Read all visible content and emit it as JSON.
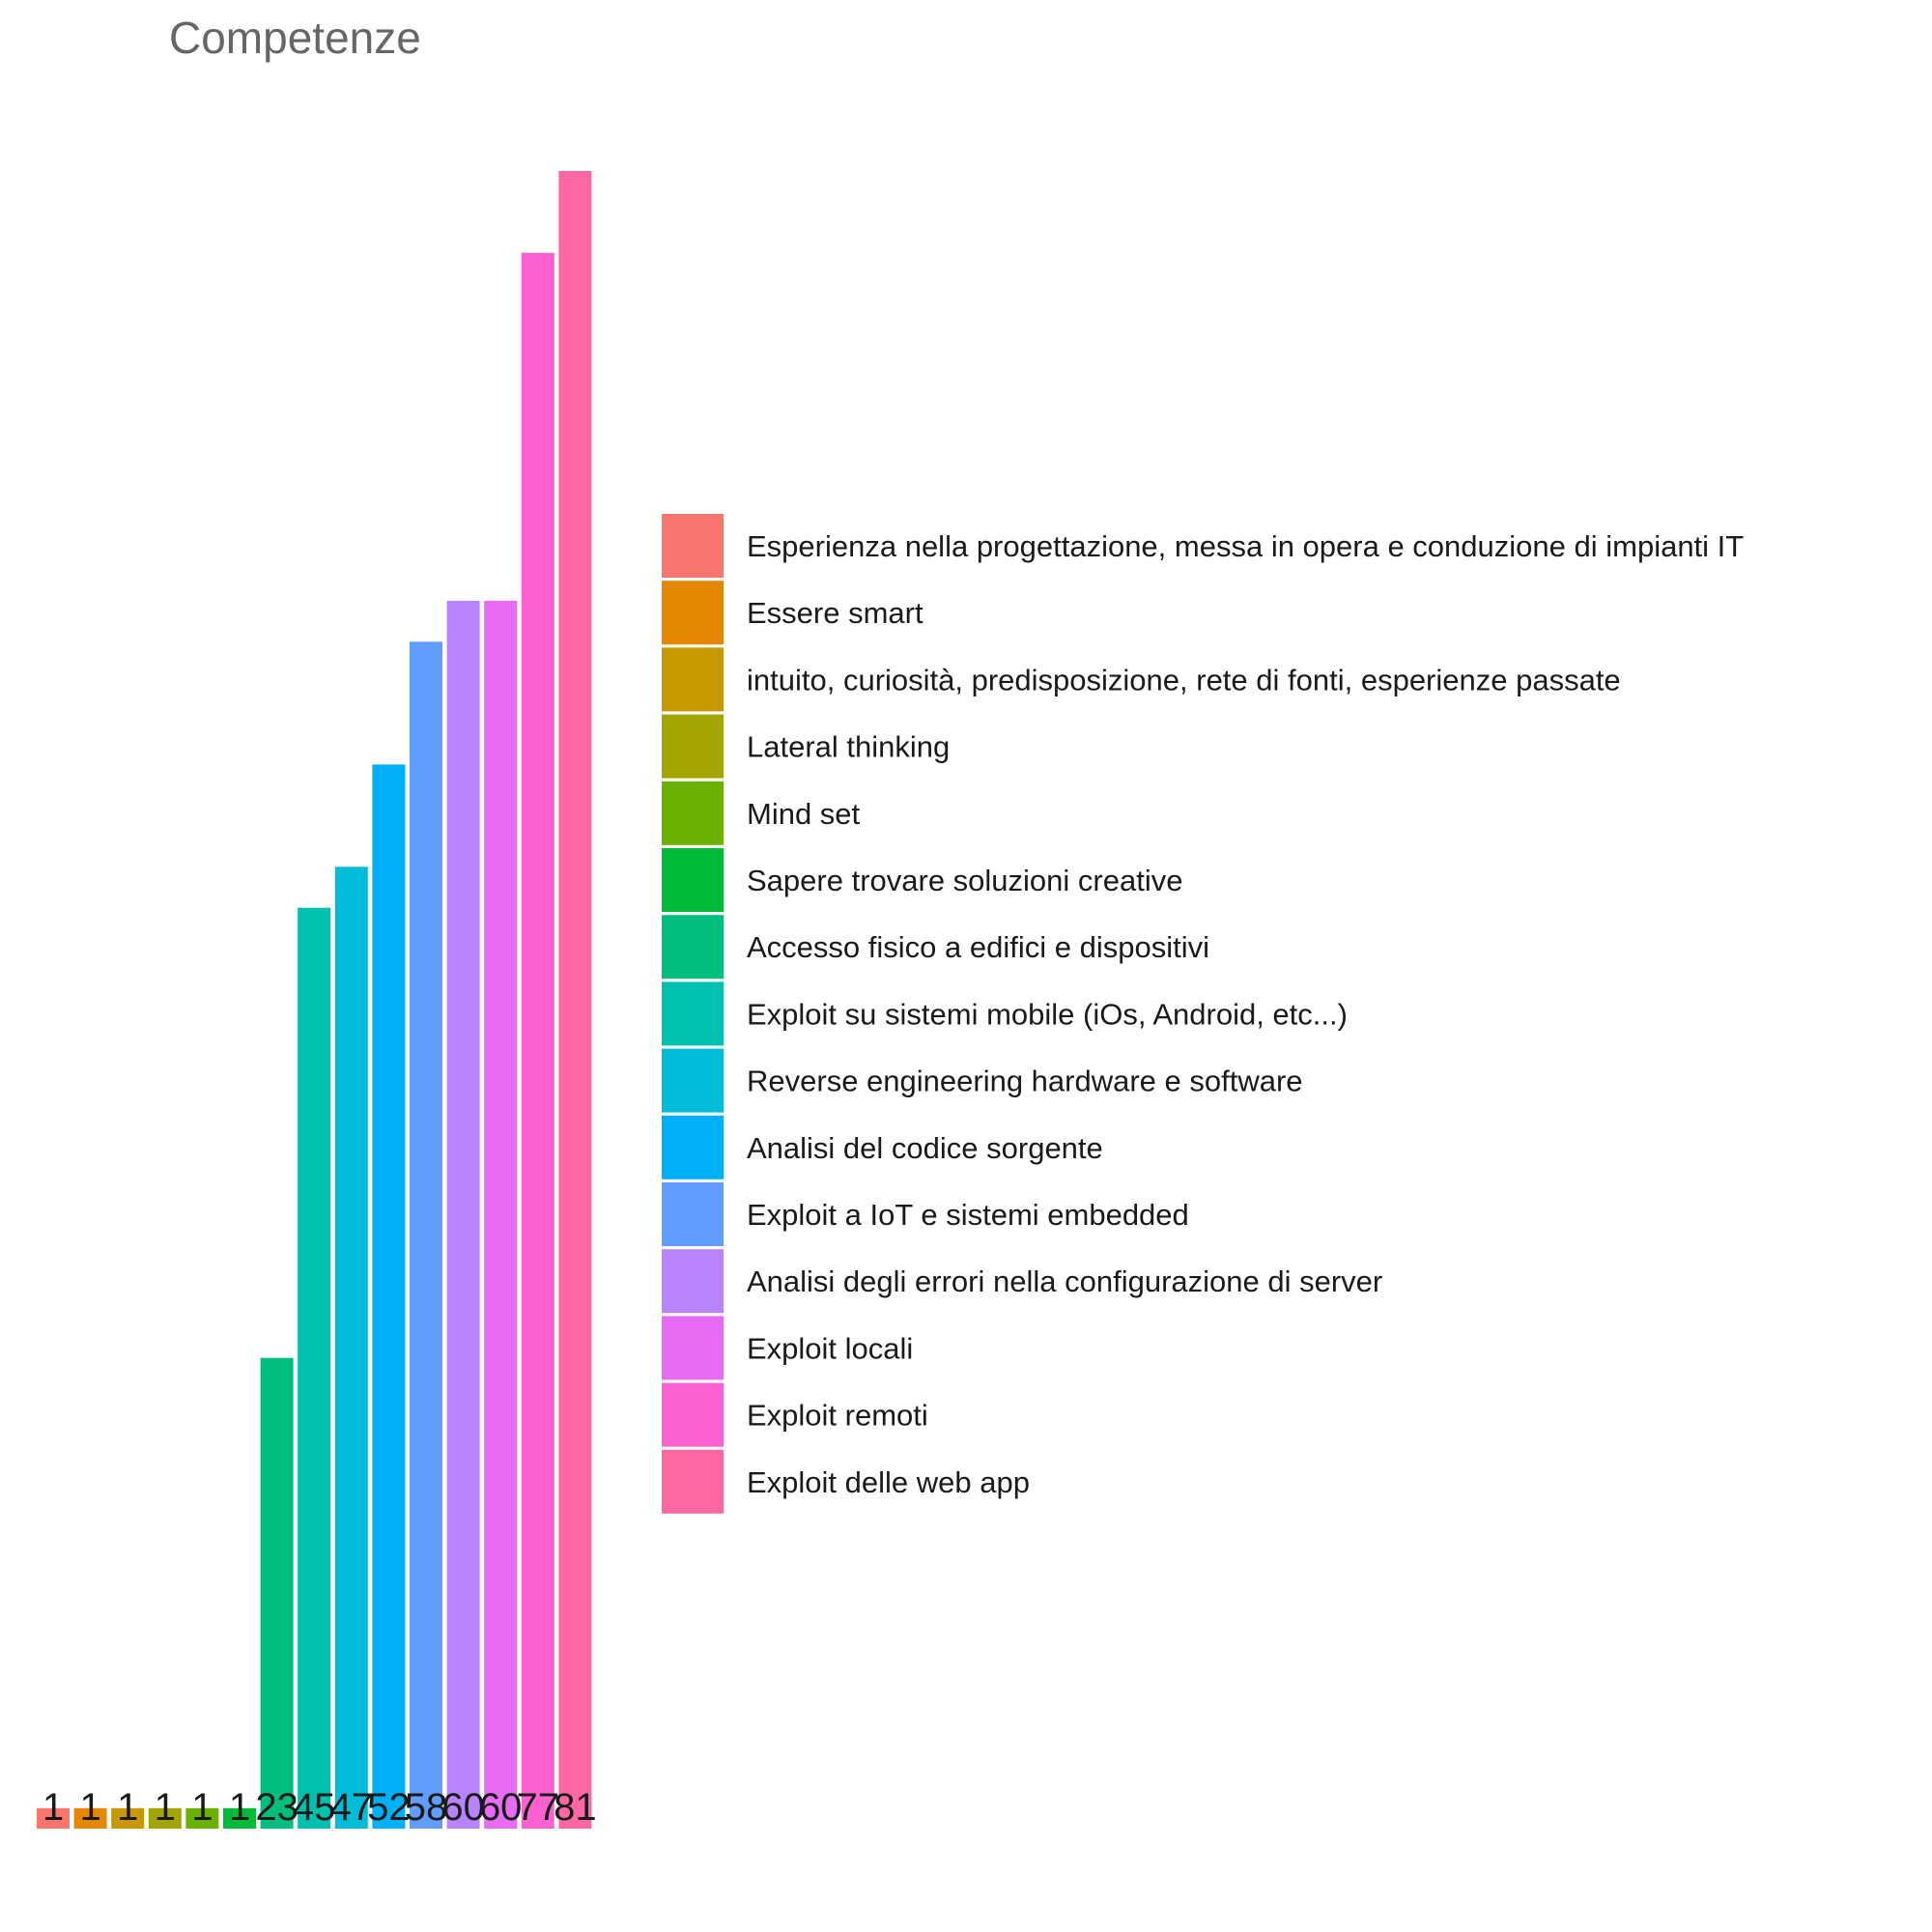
{
  "chart_data": {
    "type": "bar",
    "title": "Competenze",
    "xlabel": "",
    "ylabel": "",
    "ylim": [
      0,
      81
    ],
    "grid": false,
    "legend_position": "right",
    "categories": [
      "Esperienza nella progettazione, messa in opera e conduzione di impianti IT",
      "Essere smart",
      "intuito, curiosità, predisposizione, rete di fonti, esperienze passate",
      "Lateral thinking",
      "Mind set",
      "Sapere trovare soluzioni creative",
      "Accesso fisico a edifici e dispositivi",
      "Exploit su sistemi mobile (iOs, Android, etc...)",
      "Reverse engineering hardware e software",
      "Analisi del codice sorgente",
      "Exploit a IoT e sistemi embedded",
      "Analisi degli errori nella configurazione di server",
      "Exploit locali",
      "Exploit remoti",
      "Exploit delle web app"
    ],
    "values": [
      1,
      1,
      1,
      1,
      1,
      1,
      23,
      45,
      47,
      52,
      58,
      60,
      60,
      77,
      81
    ],
    "data_labels": [
      "1",
      "1",
      "1",
      "1",
      "1",
      "1",
      "23",
      "45",
      "47",
      "52",
      "58",
      "60",
      "60",
      "77",
      "81"
    ],
    "colors": [
      "#F8766D",
      "#E58700",
      "#C99800",
      "#A3A500",
      "#6BB100",
      "#00BA38",
      "#00BF7D",
      "#00C0AF",
      "#00BCD8",
      "#00B0F6",
      "#619CFF",
      "#B983FF",
      "#E76BF3",
      "#FD61D1",
      "#FF67A4"
    ]
  }
}
